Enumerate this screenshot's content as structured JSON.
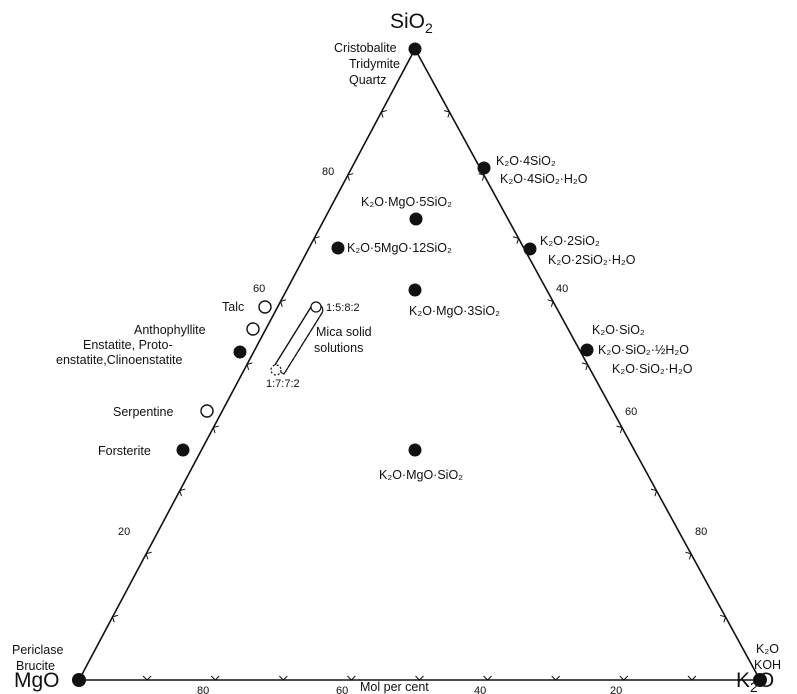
{
  "vertices": {
    "top": "SiO",
    "top_sub": "2",
    "left": "MgO",
    "right": "K",
    "right_sub": "2",
    "right_suffix": "O"
  },
  "bottom_axis_title": "Mol per cent",
  "axis_ticks": {
    "bottom": [
      "80",
      "60",
      "40",
      "20"
    ],
    "left": [
      "80",
      "60",
      "20"
    ],
    "right": [
      "40",
      "60",
      "80"
    ]
  },
  "phases": [
    {
      "id": "silica",
      "lines": [
        "Cristobalite",
        "Tridymite",
        "Quartz"
      ],
      "marker": "filled"
    },
    {
      "id": "k2o-4sio2",
      "lines": [
        "K₂O·4SiO₂",
        "K₂O·4SiO₂·H₂O"
      ],
      "marker": "filled"
    },
    {
      "id": "k2o-mgo-5sio2",
      "lines": [
        "K₂O·MgO·5SiO₂"
      ],
      "marker": "filled"
    },
    {
      "id": "k2o-5mgo-12sio2",
      "lines": [
        "K₂O·5MgO·12SiO₂"
      ],
      "marker": "filled"
    },
    {
      "id": "k2o-2sio2",
      "lines": [
        "K₂O·2SiO₂",
        "K₂O·2SiO₂·H₂O"
      ],
      "marker": "filled"
    },
    {
      "id": "k2o-mgo-3sio2",
      "lines": [
        "K₂O·MgO·3SiO₂"
      ],
      "marker": "filled"
    },
    {
      "id": "talc",
      "lines": [
        "Talc"
      ],
      "marker": "open"
    },
    {
      "id": "anthophyllite",
      "lines": [
        "Anthophyllite"
      ],
      "marker": "open"
    },
    {
      "id": "enstatite",
      "lines": [
        "Enstatite, Proto-",
        "enstatite,Clinoenstatite"
      ],
      "marker": "filled"
    },
    {
      "id": "k2o-sio2",
      "lines": [
        "K₂O·SiO₂",
        "K₂O·SiO₂·½H₂O",
        "K₂O·SiO₂·H₂O"
      ],
      "marker": "filled"
    },
    {
      "id": "serpentine",
      "lines": [
        "Serpentine"
      ],
      "marker": "open"
    },
    {
      "id": "forsterite",
      "lines": [
        "Forsterite"
      ],
      "marker": "filled"
    },
    {
      "id": "k2o-mgo-sio2",
      "lines": [
        "K₂O·MgO·SiO₂"
      ],
      "marker": "filled"
    },
    {
      "id": "mgo",
      "lines": [
        "Periclase",
        "Brucite"
      ],
      "marker": "filled"
    },
    {
      "id": "k2o",
      "lines": [
        "K₂O",
        "KOH"
      ],
      "marker": "filled"
    }
  ],
  "mica": {
    "label_lines": [
      "Mica solid",
      "solutions"
    ],
    "end_top": "1:5:8:2",
    "end_bottom": "1:7:7:2"
  }
}
